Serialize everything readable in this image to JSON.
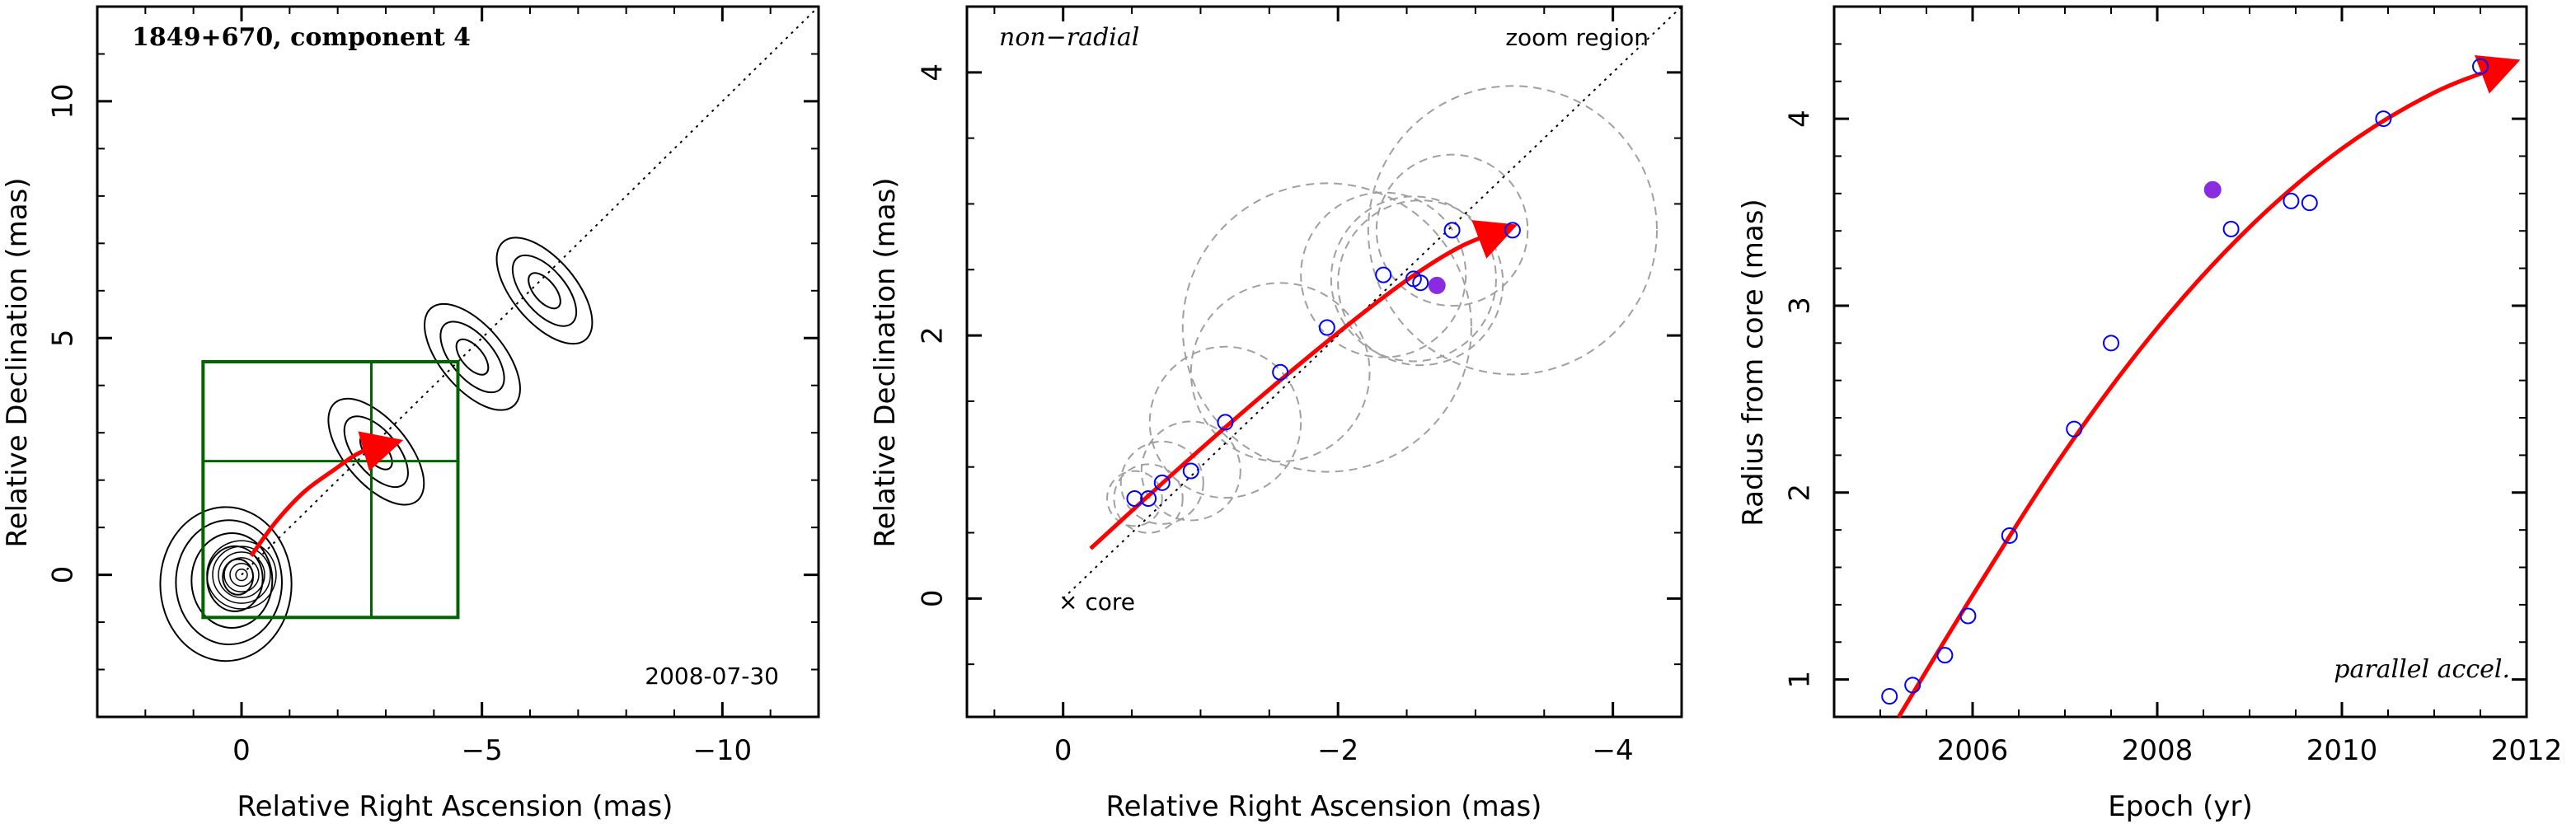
{
  "colors": {
    "fit_curve": "#ff0000",
    "open_marker": "#0000ff",
    "filled_marker": "#8a2be2",
    "box": "#006400",
    "circles": "#a0a0a0",
    "contours": "#000000"
  },
  "chart_data": [
    {
      "type": "contour",
      "title": "1849+670, component 4",
      "date_label": "2008-07-30",
      "xlabel": "Relative Right Ascension (mas)",
      "ylabel": "Relative Declination (mas)",
      "xlim": [
        3,
        -12
      ],
      "ylim": [
        -3,
        12
      ],
      "xticks": [
        0,
        -5,
        -10
      ],
      "xtick_labels": [
        "0",
        "−5",
        "−10"
      ],
      "yticks": [
        0,
        5,
        10
      ],
      "ytick_labels": [
        "0",
        "5",
        "10"
      ],
      "diagonal_line": [
        [
          0,
          0
        ],
        [
          -12,
          12
        ]
      ],
      "zoom_box": {
        "x": [
          0.8,
          -4.5
        ],
        "y": [
          -0.9,
          4.5
        ],
        "divider_x": -2.7,
        "divider_y": 2.4
      },
      "trajectory": [
        [
          -0.2,
          0.4
        ],
        [
          -0.7,
          1.1
        ],
        [
          -1.3,
          1.75
        ],
        [
          -1.9,
          2.2
        ],
        [
          -2.5,
          2.6
        ],
        [
          -3.2,
          2.8
        ]
      ],
      "contour_core_radii": [
        0.3,
        0.55,
        0.8,
        1.05,
        1.3
      ],
      "jet_knots": [
        {
          "x": -2.8,
          "y": 2.6
        },
        {
          "x": -4.8,
          "y": 4.6
        },
        {
          "x": -6.3,
          "y": 6.0
        }
      ]
    },
    {
      "type": "scatter",
      "label": "non−radial",
      "annotation": "zoom region",
      "core_label": "× core",
      "xlabel": "Relative Right Ascension (mas)",
      "ylabel": "Relative Declination (mas)",
      "xlim": [
        0.7,
        -4.5
      ],
      "ylim": [
        -0.9,
        4.5
      ],
      "xticks": [
        0,
        -2,
        -4
      ],
      "xtick_labels": [
        "0",
        "−2",
        "−4"
      ],
      "yticks": [
        0,
        2,
        4
      ],
      "ytick_labels": [
        "0",
        "2",
        "4"
      ],
      "points": [
        {
          "x": -0.52,
          "y": 0.76,
          "r": 0.2
        },
        {
          "x": -0.62,
          "y": 0.76,
          "r": 0.25
        },
        {
          "x": -0.72,
          "y": 0.88,
          "r": 0.3
        },
        {
          "x": -0.93,
          "y": 0.97,
          "r": 0.36
        },
        {
          "x": -1.18,
          "y": 1.34,
          "r": 0.55
        },
        {
          "x": -1.58,
          "y": 1.72,
          "r": 0.65
        },
        {
          "x": -1.92,
          "y": 2.06,
          "r": 1.05
        },
        {
          "x": -2.33,
          "y": 2.46,
          "r": 0.6
        },
        {
          "x": -2.55,
          "y": 2.43,
          "r": 0.6
        },
        {
          "x": -2.6,
          "y": 2.4,
          "r": 0.6
        },
        {
          "x": -2.83,
          "y": 2.8,
          "r": 0.55
        },
        {
          "x": -3.27,
          "y": 2.8,
          "r": 1.05
        }
      ],
      "filled_point": {
        "x": -2.72,
        "y": 2.38
      },
      "fit_curve": [
        [
          -0.2,
          0.38
        ],
        [
          -0.8,
          0.95
        ],
        [
          -1.4,
          1.5
        ],
        [
          -2.0,
          2.02
        ],
        [
          -2.5,
          2.42
        ],
        [
          -2.9,
          2.68
        ],
        [
          -3.25,
          2.82
        ]
      ]
    },
    {
      "type": "scatter",
      "label": "parallel accel.",
      "xlabel": "Epoch (yr)",
      "ylabel": "Radius from core (mas)",
      "xlim": [
        2004.5,
        2012
      ],
      "ylim": [
        0.8,
        4.6
      ],
      "xticks": [
        2006,
        2008,
        2010,
        2012
      ],
      "xtick_labels": [
        "2006",
        "2008",
        "2010",
        "2012"
      ],
      "yticks": [
        1,
        2,
        3,
        4
      ],
      "ytick_labels": [
        "1",
        "2",
        "3",
        "4"
      ],
      "points": [
        {
          "x": 2005.1,
          "y": 0.91
        },
        {
          "x": 2005.35,
          "y": 0.97
        },
        {
          "x": 2005.7,
          "y": 1.13
        },
        {
          "x": 2005.95,
          "y": 1.34
        },
        {
          "x": 2006.4,
          "y": 1.77
        },
        {
          "x": 2007.1,
          "y": 2.34
        },
        {
          "x": 2007.5,
          "y": 2.8
        },
        {
          "x": 2008.8,
          "y": 3.41
        },
        {
          "x": 2009.45,
          "y": 3.56
        },
        {
          "x": 2009.65,
          "y": 3.55
        },
        {
          "x": 2010.45,
          "y": 4.0
        },
        {
          "x": 2011.5,
          "y": 4.28
        }
      ],
      "filled_point": {
        "x": 2008.6,
        "y": 3.62
      },
      "fit_curve": [
        [
          2005.2,
          0.8
        ],
        [
          2006.0,
          1.45
        ],
        [
          2007.0,
          2.22
        ],
        [
          2008.0,
          2.88
        ],
        [
          2009.0,
          3.42
        ],
        [
          2010.0,
          3.84
        ],
        [
          2011.0,
          4.14
        ],
        [
          2011.85,
          4.3
        ]
      ]
    }
  ]
}
